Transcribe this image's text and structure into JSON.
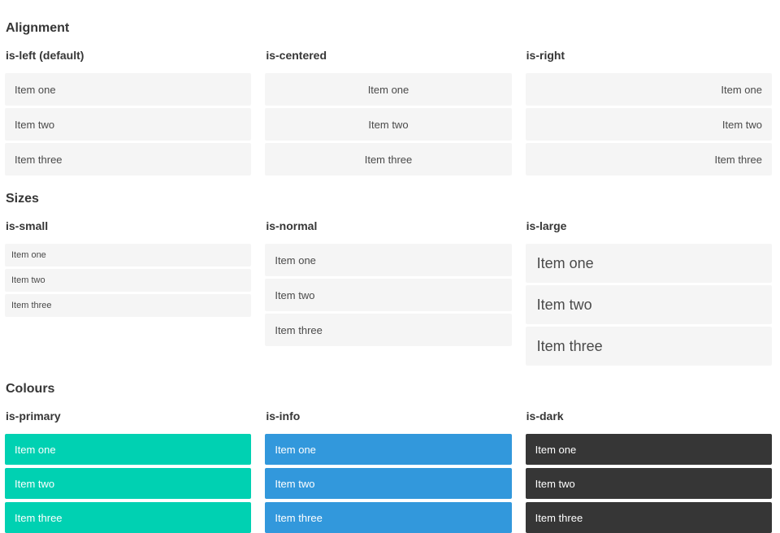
{
  "colors": {
    "primary": "#00d1b2",
    "info": "#3298dc",
    "dark": "#363636",
    "item_background": "#f5f5f5",
    "item_text": "#4a4a4a",
    "heading_text": "#363636",
    "colored_item_text": "#ffffff"
  },
  "sections": [
    {
      "title": "Alignment",
      "columns": [
        {
          "label": "is-left (default)",
          "variant": "align-left",
          "items": [
            "Item one",
            "Item two",
            "Item three"
          ]
        },
        {
          "label": "is-centered",
          "variant": "align-centered",
          "items": [
            "Item one",
            "Item two",
            "Item three"
          ]
        },
        {
          "label": "is-right",
          "variant": "align-right",
          "items": [
            "Item one",
            "Item two",
            "Item three"
          ]
        }
      ]
    },
    {
      "title": "Sizes",
      "columns": [
        {
          "label": "is-small",
          "variant": "size-small",
          "items": [
            "Item one",
            "Item two",
            "Item three"
          ]
        },
        {
          "label": "is-normal",
          "variant": "size-normal",
          "items": [
            "Item one",
            "Item two",
            "Item three"
          ]
        },
        {
          "label": "is-large",
          "variant": "size-large",
          "items": [
            "Item one",
            "Item two",
            "Item three"
          ]
        }
      ]
    },
    {
      "title": "Colours",
      "columns": [
        {
          "label": "is-primary",
          "variant": "color-primary",
          "items": [
            "Item one",
            "Item two",
            "Item three"
          ]
        },
        {
          "label": "is-info",
          "variant": "color-info",
          "items": [
            "Item one",
            "Item two",
            "Item three"
          ]
        },
        {
          "label": "is-dark",
          "variant": "color-dark",
          "items": [
            "Item one",
            "Item two",
            "Item three"
          ]
        }
      ]
    }
  ]
}
